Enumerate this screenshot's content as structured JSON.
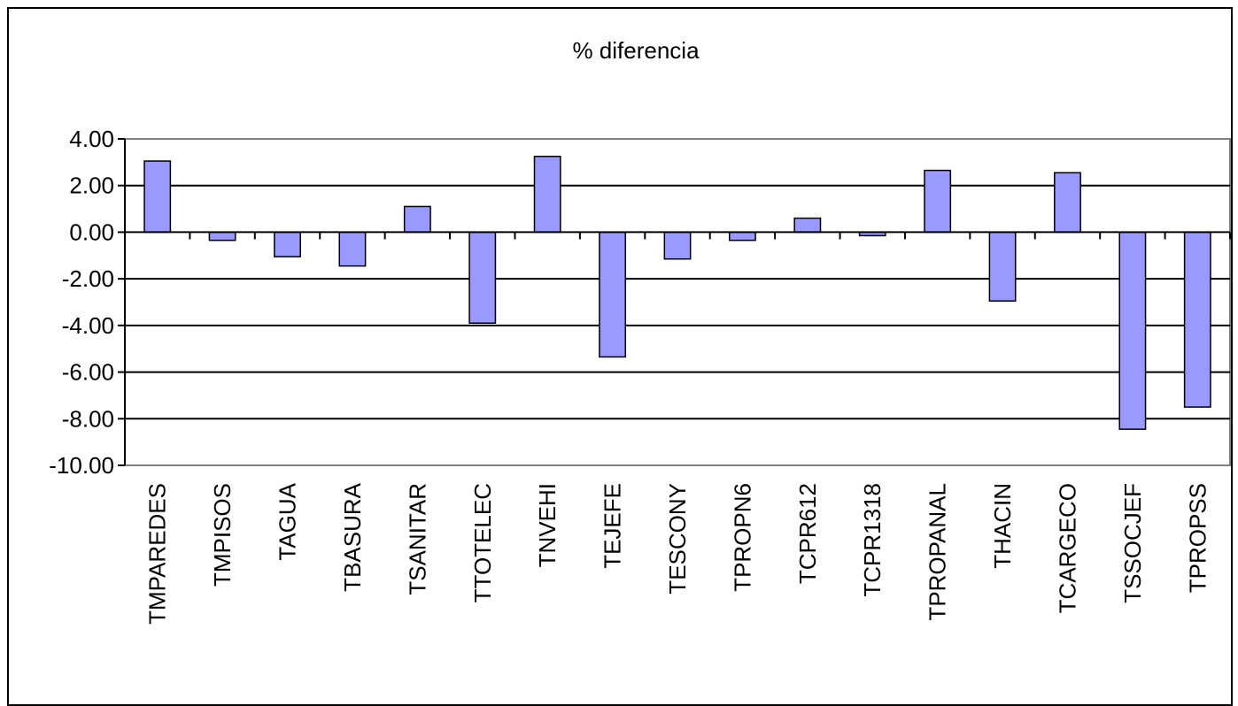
{
  "chart_data": {
    "type": "bar",
    "title": "% diferencia",
    "xlabel": "",
    "ylabel": "",
    "categories": [
      "TMPAREDES",
      "TMPISOS",
      "TAGUA",
      "TBASURA",
      "TSANITAR",
      "TTOTELEC",
      "TNVEHI",
      "TEJEFE",
      "TESCONY",
      "TPROPN6",
      "TCPR612",
      "TCPR1318",
      "TPROPANAL",
      "THACIN",
      "TCARGECO",
      "TSSOCJEF",
      "TPROPSS"
    ],
    "values": [
      3.05,
      -0.35,
      -1.05,
      -1.45,
      1.1,
      -3.9,
      3.25,
      -5.35,
      -1.15,
      -0.35,
      0.6,
      -0.15,
      2.65,
      -2.95,
      2.55,
      -8.45,
      -7.5
    ],
    "ylim": [
      -10,
      4
    ],
    "yticks": [
      4,
      2,
      0,
      -2,
      -4,
      -6,
      -8,
      -10
    ],
    "ytick_labels": [
      "4.00",
      "2.00",
      "0.00",
      "-2.00",
      "-4.00",
      "-6.00",
      "-8.00",
      "-10.00"
    ],
    "grid": true,
    "bar_color": "#9999FF",
    "bar_edge_color": "#000000",
    "plot_border_color": "#808080"
  }
}
